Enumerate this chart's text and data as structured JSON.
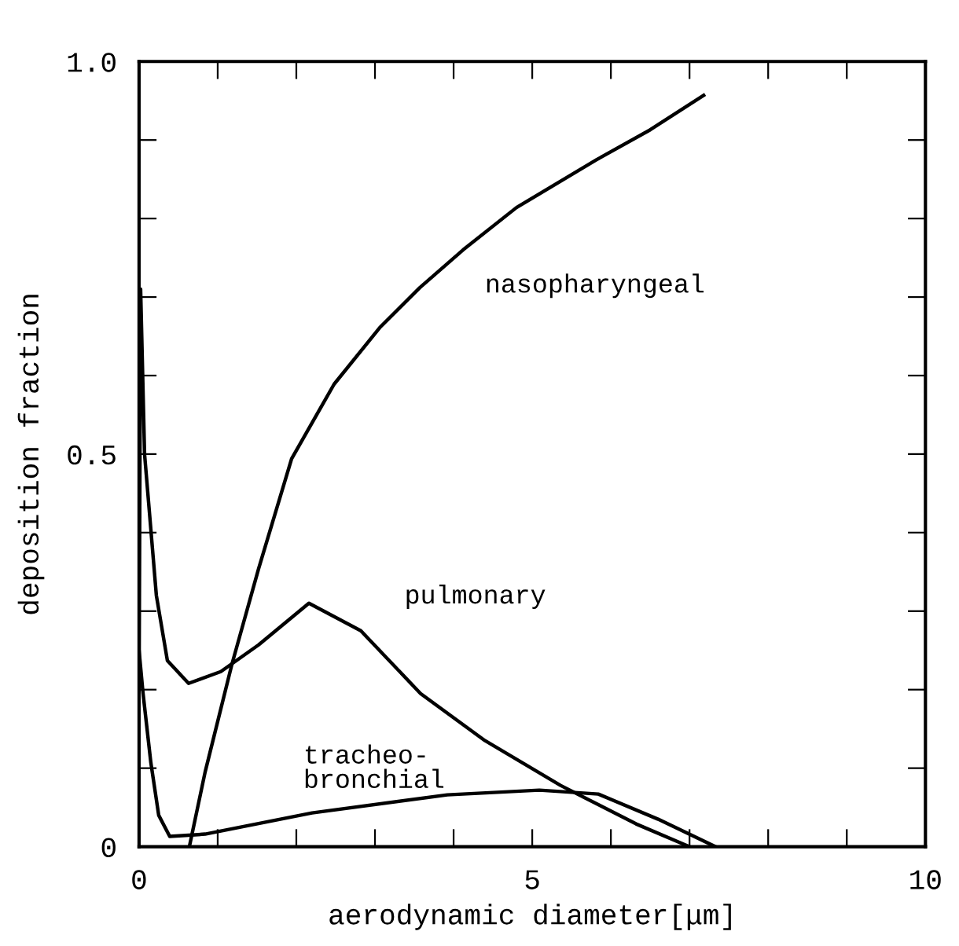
{
  "chart_data": {
    "type": "line",
    "xlabel": "aerodynamic diameter[μm]",
    "ylabel": "deposition fraction",
    "xlim": [
      0,
      10
    ],
    "ylim": [
      0,
      1.0
    ],
    "xticks": [
      0,
      {
        "value": 1,
        "label": null
      },
      {
        "value": 2,
        "label": null
      },
      {
        "value": 3,
        "label": null
      },
      {
        "value": 4,
        "label": null
      },
      5,
      {
        "value": 6,
        "label": null
      },
      {
        "value": 7,
        "label": null
      },
      {
        "value": 8,
        "label": null
      },
      {
        "value": 9,
        "label": null
      },
      10
    ],
    "yticks": [
      0,
      {
        "value": 0.1,
        "label": null
      },
      {
        "value": 0.2,
        "label": null
      },
      {
        "value": 0.3,
        "label": null
      },
      {
        "value": 0.4,
        "label": null
      },
      0.5,
      {
        "value": 0.6,
        "label": null
      },
      {
        "value": 0.7,
        "label": null
      },
      {
        "value": 0.8,
        "label": null
      },
      {
        "value": 0.9,
        "label": null
      },
      {
        "value": 1.0,
        "label": "1.0"
      }
    ],
    "grid": false,
    "legend": false,
    "marker": "none",
    "line_style": "solid",
    "series": [
      {
        "name": "nasopharyngeal",
        "color": "#000000",
        "x": [
          0.64,
          0.84,
          1.18,
          1.52,
          1.94,
          2.48,
          3.06,
          3.57,
          4.12,
          4.8,
          5.82,
          6.5,
          7.18
        ],
        "values": [
          0,
          0.095,
          0.232,
          0.354,
          0.494,
          0.589,
          0.661,
          0.712,
          0.76,
          0.814,
          0.875,
          0.913,
          0.957
        ]
      },
      {
        "name": "pulmonary",
        "color": "#000000",
        "x": [
          0,
          0.02,
          0.07,
          0.22,
          0.36,
          0.63,
          1.04,
          1.52,
          2.16,
          2.82,
          3.58,
          4.4,
          5.36,
          6.32,
          7.0
        ],
        "values": [
          0.2,
          0.71,
          0.5,
          0.32,
          0.237,
          0.208,
          0.223,
          0.257,
          0.31,
          0.275,
          0.195,
          0.135,
          0.078,
          0.029,
          0
        ]
      },
      {
        "name": "tracheo-\nbronchial",
        "color": "#000000",
        "x": [
          0,
          0.05,
          0.15,
          0.25,
          0.39,
          0.84,
          2.2,
          3.92,
          5.09,
          5.84,
          6.6,
          7.33
        ],
        "values": [
          0.25,
          0.196,
          0.107,
          0.04,
          0.013,
          0.016,
          0.043,
          0.066,
          0.072,
          0.067,
          0.035,
          0
        ]
      }
    ]
  }
}
